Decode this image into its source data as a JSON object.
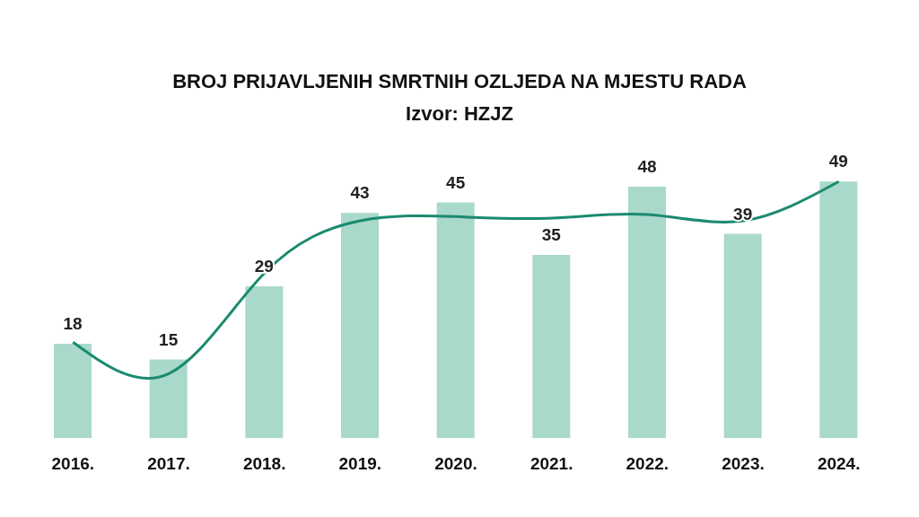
{
  "chart_data": {
    "type": "bar",
    "title": "BROJ PRIJAVLJENIH SMRTNIH OZLJEDA NA MJESTU RADA",
    "subtitle": "Izvor: HZJZ",
    "categories": [
      "2016.",
      "2017.",
      "2018.",
      "2019.",
      "2020.",
      "2021.",
      "2022.",
      "2023.",
      "2024."
    ],
    "series": [
      {
        "color": "#a8d9cb",
        "values": [
          18,
          15,
          29,
          43,
          45,
          35,
          48,
          39,
          49
        ],
        "value_labels": [
          "18",
          "15",
          "29",
          "43",
          "45",
          "35",
          "48",
          "39",
          "49"
        ]
      },
      {
        "type": "line",
        "color": "#1b8a6f",
        "values": [
          18.3,
          12.3,
          31.5,
          41.5,
          42.3,
          42,
          42.7,
          41.5,
          49
        ]
      }
    ],
    "grid": false,
    "legend": false,
    "marker": "none",
    "line_style": "solid"
  }
}
